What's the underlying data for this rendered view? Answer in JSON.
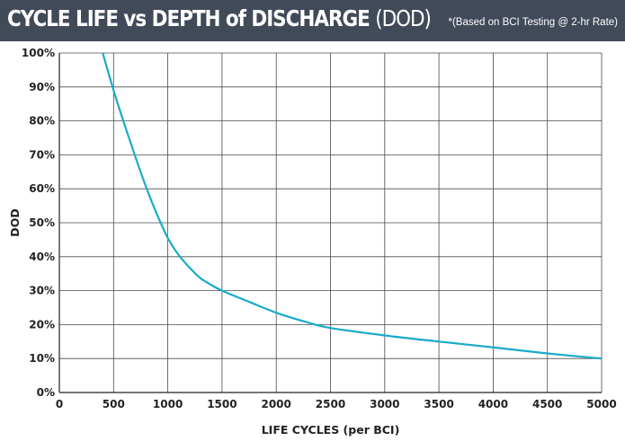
{
  "header": {
    "title": "CYCLE LIFE vs DEPTH of DISCHARGE",
    "title_suffix": "(DOD)",
    "note": "*(Based on BCI Testing @ 2-hr Rate)",
    "background_color": "#414a58"
  },
  "chart_data": {
    "type": "line",
    "title": "CYCLE LIFE vs DEPTH of DISCHARGE (DOD)",
    "subtitle": "*(Based on BCI Testing @ 2-hr Rate)",
    "xlabel": "LIFE CYCLES (per BCI)",
    "ylabel": "DOD",
    "xlim": [
      0,
      5000
    ],
    "ylim": [
      0,
      100
    ],
    "x_ticks": [
      0,
      500,
      1000,
      1500,
      2000,
      2500,
      3000,
      3500,
      4000,
      4500,
      5000
    ],
    "y_ticks": [
      0,
      10,
      20,
      30,
      40,
      50,
      60,
      70,
      80,
      90,
      100
    ],
    "y_tick_labels": [
      "0%",
      "10%",
      "20%",
      "30%",
      "40%",
      "50%",
      "60%",
      "70%",
      "80%",
      "90%",
      "100%"
    ],
    "grid": true,
    "line_color": "#1aabc9",
    "series": [
      {
        "x": [
          400,
          500,
          600,
          700,
          800,
          900,
          1000,
          1100,
          1200,
          1300,
          1400,
          1500,
          1750,
          2000,
          2250,
          2500,
          3000,
          3500,
          4000,
          4500,
          5000
        ],
        "y": [
          100,
          89,
          79,
          69.5,
          60.5,
          52.5,
          45.5,
          40.5,
          36.8,
          33.7,
          31.7,
          30,
          26.7,
          23.5,
          21,
          19,
          16.8,
          15,
          13.3,
          11.5,
          10
        ]
      }
    ]
  }
}
